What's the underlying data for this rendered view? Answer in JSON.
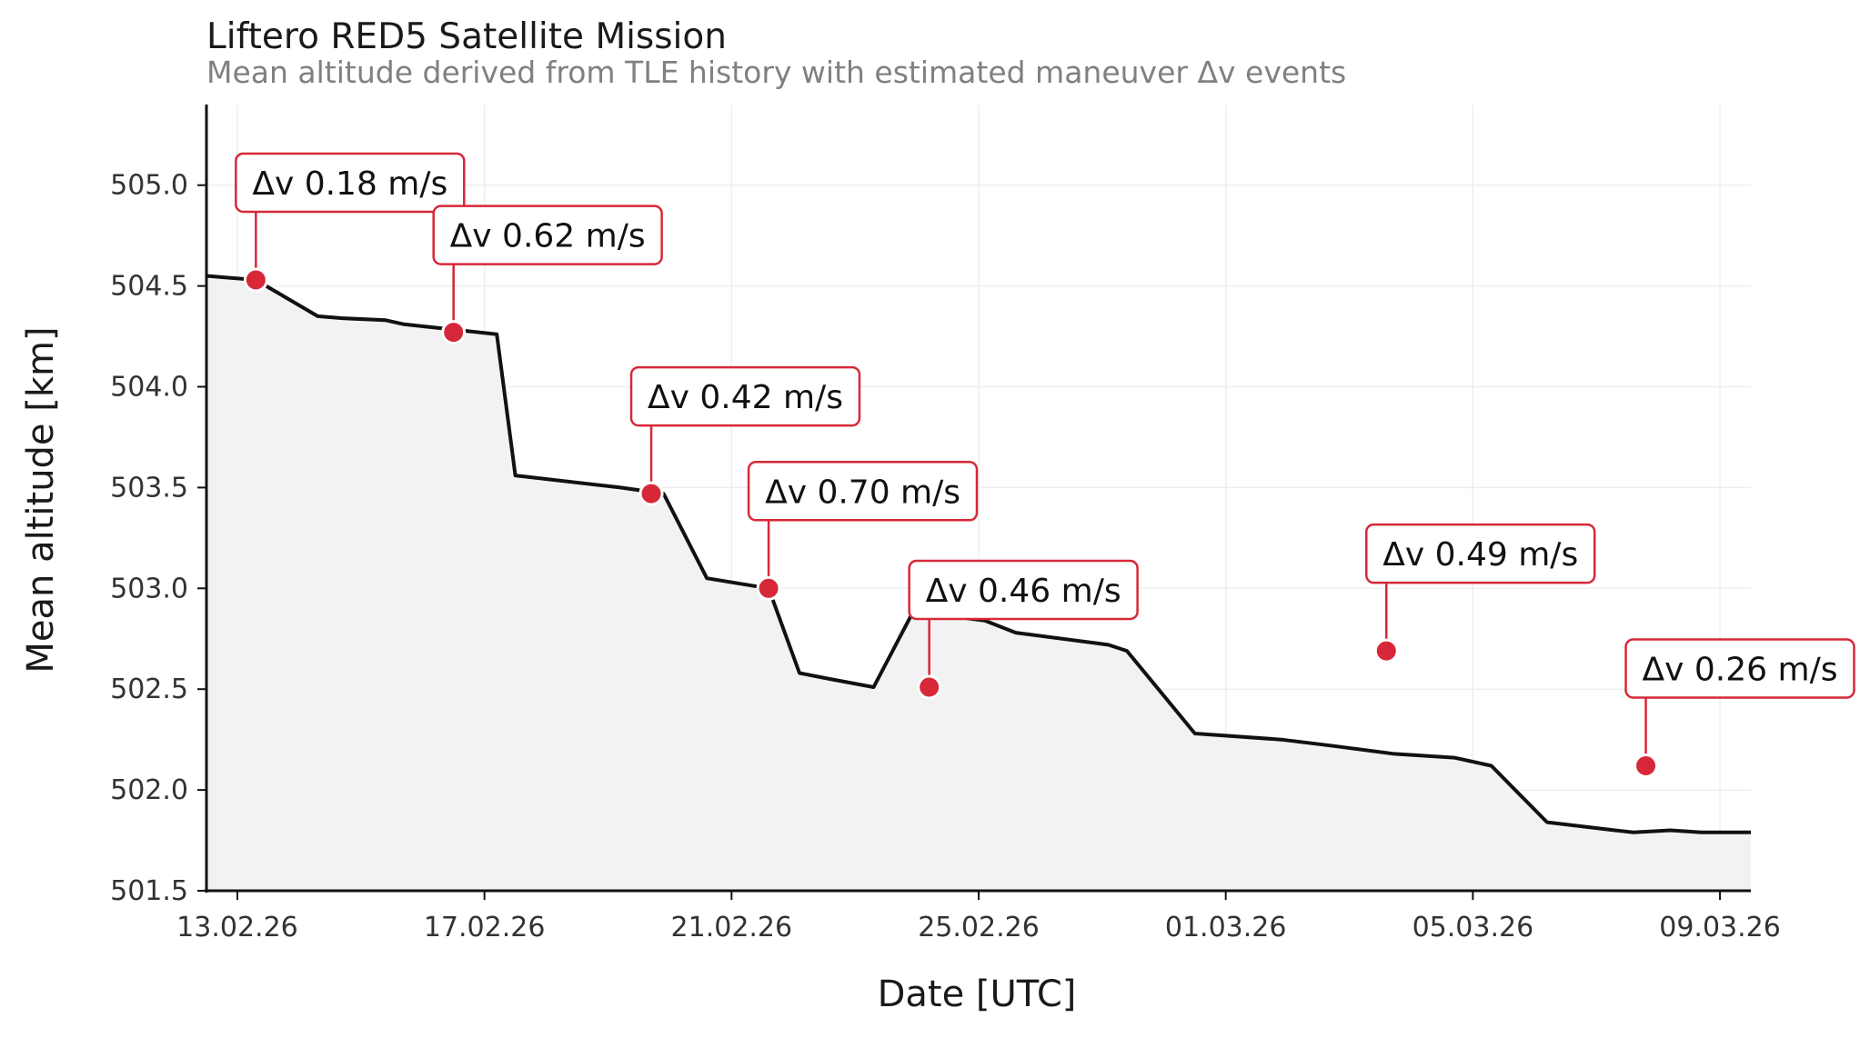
{
  "title": "Liftero RED5 Satellite Mission",
  "subtitle": "Mean altitude derived from TLE history with estimated maneuver Δv events",
  "chart_data": {
    "type": "line",
    "xlabel": "Date [UTC]",
    "ylabel": "Mean altitude [km]",
    "xlim": [
      "2026-02-12T12:00",
      "2026-03-09T12:00"
    ],
    "ylim": [
      501.5,
      505.4
    ],
    "x_ticks": [
      "2026-02-13",
      "2026-02-17",
      "2026-02-21",
      "2026-02-25",
      "2026-03-01",
      "2026-03-05",
      "2026-03-09"
    ],
    "x_tick_labels": [
      "13.02.26",
      "17.02.26",
      "21.02.26",
      "25.02.26",
      "01.03.26",
      "05.03.26",
      "09.03.26"
    ],
    "y_ticks": [
      501.5,
      502.0,
      502.5,
      503.0,
      503.5,
      504.0,
      504.5,
      505.0
    ],
    "y_tick_labels": [
      "501.5",
      "502.0",
      "502.5",
      "503.0",
      "503.5",
      "504.0",
      "504.5",
      "505.0"
    ],
    "grid": true,
    "area_fill": true,
    "series": [
      {
        "x": [
          "2026-02-12T12:00",
          "2026-02-13T07:12",
          "2026-02-14T07:12",
          "2026-02-14T16:48",
          "2026-02-15T09:36",
          "2026-02-15T16:48",
          "2026-02-16T14:24",
          "2026-02-17T04:48",
          "2026-02-17T12:00",
          "2026-02-19T04:48",
          "2026-02-19T21:36",
          "2026-02-20T14:24",
          "2026-02-21T14:24",
          "2026-02-22T02:24",
          "2026-02-22T14:24",
          "2026-02-23T07:12",
          "2026-02-24T00:00",
          "2026-02-24T14:24",
          "2026-02-25T02:24",
          "2026-02-25T14:24",
          "2026-02-27T02:24",
          "2026-02-27T09:36",
          "2026-02-28T12:00",
          "2026-03-01T21:36",
          "2026-03-02T16:48",
          "2026-03-03T16:48",
          "2026-03-04T16:48",
          "2026-03-05T07:12",
          "2026-03-06T04:48",
          "2026-03-07T07:12",
          "2026-03-07T14:24",
          "2026-03-08T04:48",
          "2026-03-08T16:48",
          "2026-03-09T12:00"
        ],
        "values": [
          504.55,
          504.53,
          504.35,
          504.34,
          504.33,
          504.31,
          504.28,
          504.26,
          503.56,
          503.5,
          503.47,
          503.05,
          503.0,
          502.58,
          502.55,
          502.51,
          502.92,
          502.86,
          502.84,
          502.78,
          502.72,
          502.69,
          502.28,
          502.25,
          502.22,
          502.18,
          502.16,
          502.12,
          501.84,
          501.8,
          501.79,
          501.8,
          501.79,
          501.79
        ]
      }
    ],
    "events": [
      {
        "x": "2026-02-13T07:12",
        "y": 504.53,
        "label": "Δv 0.18 m/s"
      },
      {
        "x": "2026-02-16T12:00",
        "y": 504.27,
        "label": "Δv 0.62 m/s"
      },
      {
        "x": "2026-02-19T16:48",
        "y": 503.47,
        "label": "Δv 0.42 m/s"
      },
      {
        "x": "2026-02-21T14:24",
        "y": 503.0,
        "label": "Δv 0.70 m/s"
      },
      {
        "x": "2026-02-24T04:48",
        "y": 502.51,
        "label": "Δv 0.46 m/s"
      },
      {
        "x": "2026-03-03T14:24",
        "y": 502.69,
        "label": "Δv 0.49 m/s"
      },
      {
        "x": "2026-03-07T19:12",
        "y": 502.12,
        "label": "Δv 0.26 m/s"
      }
    ],
    "colors": {
      "line": "#111111",
      "fill": "#f2f2f2",
      "event": "#d62839",
      "grid": "#eeeeee"
    }
  }
}
